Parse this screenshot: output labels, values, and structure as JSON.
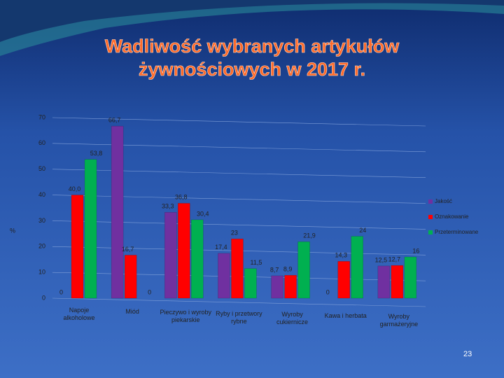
{
  "chart_data": {
    "type": "bar",
    "title": "Wadliwość wybranych artykułów żywnościowych w 2017 r.",
    "y_label": "%",
    "categories": [
      "Napoje alkoholowe",
      "Miód",
      "Pieczywo i wyroby piekarskie",
      "Ryby i przetwory rybne",
      "Wyroby cukiernicze",
      "Kawa i herbata",
      "Wyroby garmażeryjne"
    ],
    "series": [
      {
        "name": "Jakość",
        "color": "#7030a0",
        "values": [
          0,
          66.7,
          33.3,
          17.4,
          8.7,
          0,
          12.5
        ],
        "value_labels": [
          "0",
          "66,7",
          "33,3",
          "17,4",
          "8,7",
          "0",
          "12,5"
        ]
      },
      {
        "name": "Oznakowanie",
        "color": "#ff0000",
        "values": [
          40.0,
          16.7,
          36.8,
          23,
          8.9,
          14.3,
          12.7
        ],
        "value_labels": [
          "40,0",
          "16,7",
          "36,8",
          "23",
          "8,9",
          "14,3",
          "12,7"
        ]
      },
      {
        "name": "Przeterminowane",
        "color": "#00b050",
        "values": [
          53.8,
          0,
          30.4,
          11.5,
          21.9,
          24,
          16
        ],
        "value_labels": [
          "53,8",
          "0",
          "30,4",
          "11,5",
          "21,9",
          "24",
          "16"
        ]
      }
    ],
    "ylim": [
      0,
      70
    ],
    "yticks": [
      0,
      10,
      20,
      30,
      40,
      50,
      60,
      70
    ],
    "grid": true,
    "legend": "right"
  },
  "page_number": "23"
}
